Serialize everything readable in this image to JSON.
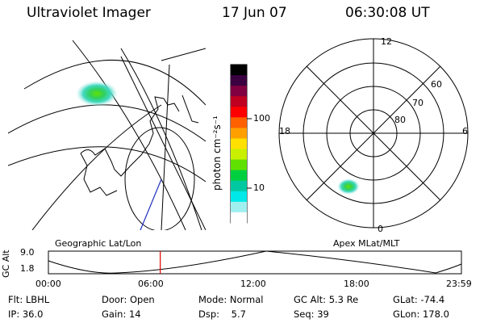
{
  "header": {
    "instrument": "Ultraviolet Imager",
    "date": "17 Jun 07",
    "time": "06:30:08 UT"
  },
  "geo_panel": {
    "caption": "Geographic Lat/Lon"
  },
  "colorbar": {
    "label": "photon cm⁻²s⁻¹",
    "ticks": [
      "100",
      "10"
    ],
    "colors": [
      "#000000",
      "#3a0040",
      "#800040",
      "#c00020",
      "#ff0000",
      "#ff6000",
      "#ffa000",
      "#ffe000",
      "#c8f000",
      "#60e000",
      "#00d040",
      "#00c8a0",
      "#00e8e8",
      "#a0f0f0",
      "#ffffff"
    ]
  },
  "polar_panel": {
    "caption": "Apex MLat/MLT",
    "mlt_labels": {
      "top": "12",
      "left": "18",
      "right": "6",
      "bottom": "0"
    },
    "lat_labels": [
      "60",
      "70",
      "80"
    ]
  },
  "altitude_plot": {
    "ylabel": "GC Alt",
    "yticks": [
      "9.0",
      "1.8"
    ],
    "xticks": [
      "00:00",
      "06:00",
      "12:00",
      "18:00",
      "23:59"
    ],
    "current_time_hours": 6.5
  },
  "status": {
    "filter": {
      "label": "Flt:",
      "value": "LBHL"
    },
    "ip": {
      "label": "IP:",
      "value": "36.0"
    },
    "door": {
      "label": "Door:",
      "value": "Open"
    },
    "gain": {
      "label": "Gain:",
      "value": "14"
    },
    "mode": {
      "label": "Mode:",
      "value": "Normal"
    },
    "dsp": {
      "label": "Dsp:",
      "value": "5.7"
    },
    "gc_alt": {
      "label": "GC Alt:",
      "value": "5.3 Re"
    },
    "seq": {
      "label": "Seq:",
      "value": "39"
    },
    "glat": {
      "label": "GLat:",
      "value": "-74.4"
    },
    "glon": {
      "label": "GLon:",
      "value": "178.0"
    }
  }
}
